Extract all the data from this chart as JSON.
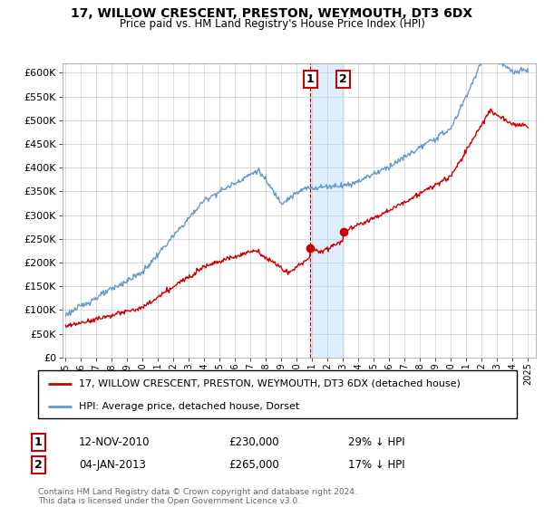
{
  "title": "17, WILLOW CRESCENT, PRESTON, WEYMOUTH, DT3 6DX",
  "subtitle": "Price paid vs. HM Land Registry's House Price Index (HPI)",
  "legend_label_red": "17, WILLOW CRESCENT, PRESTON, WEYMOUTH, DT3 6DX (detached house)",
  "legend_label_blue": "HPI: Average price, detached house, Dorset",
  "sale1_label": "12-NOV-2010",
  "sale1_price": "£230,000",
  "sale1_hpi": "29% ↓ HPI",
  "sale1_year": 2010.87,
  "sale1_value": 230000,
  "sale2_label": "04-JAN-2013",
  "sale2_price": "£265,000",
  "sale2_hpi": "17% ↓ HPI",
  "sale2_year": 2013.01,
  "sale2_value": 265000,
  "footer": "Contains HM Land Registry data © Crown copyright and database right 2024.\nThis data is licensed under the Open Government Licence v3.0.",
  "red_color": "#cc0000",
  "blue_color": "#6699cc",
  "shade_color": "#ddeeff",
  "marker_color": "#cc0000",
  "vline1_color": "#cc0000",
  "vline2_color": "#aabbcc",
  "box_color": "#cc0000",
  "ylim": [
    0,
    620000
  ],
  "xlim_left": 1994.8,
  "xlim_right": 2025.5,
  "yticks": [
    0,
    50000,
    100000,
    150000,
    200000,
    250000,
    300000,
    350000,
    400000,
    450000,
    500000,
    550000,
    600000
  ],
  "ytick_labels": [
    "£0",
    "£50K",
    "£100K",
    "£150K",
    "£200K",
    "£250K",
    "£300K",
    "£350K",
    "£400K",
    "£450K",
    "£500K",
    "£550K",
    "£600K"
  ]
}
